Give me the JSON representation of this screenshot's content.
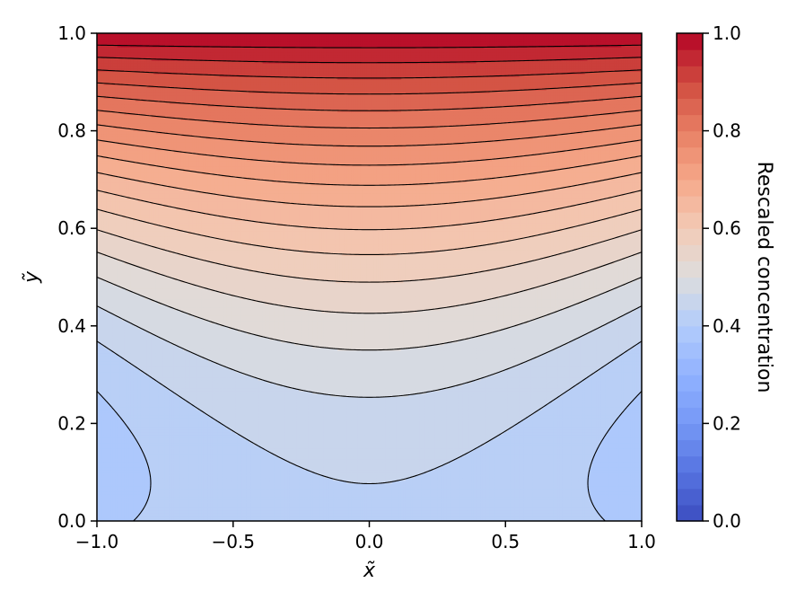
{
  "chart_data": {
    "type": "contour",
    "xlabel": "x̃",
    "ylabel": "ỹ",
    "xlim": [
      -1.0,
      1.0
    ],
    "ylim": [
      0.0,
      1.0
    ],
    "x_ticks": [
      "−1.0",
      "−0.5",
      "0.0",
      "0.5",
      "1.0"
    ],
    "x_tick_values": [
      -1.0,
      -0.5,
      0.0,
      0.5,
      1.0
    ],
    "y_ticks": [
      "0.0",
      "0.2",
      "0.4",
      "0.6",
      "0.8",
      "1.0"
    ],
    "y_tick_values": [
      0.0,
      0.2,
      0.4,
      0.6,
      0.8,
      1.0
    ],
    "colormap": "coolwarm",
    "color_low": "#3b4cc0",
    "color_mid": "#dddddd",
    "color_high": "#b40426",
    "colorbar": {
      "label": "Rescaled concentration",
      "range": [
        0.0,
        1.0
      ],
      "ticks": [
        "0.0",
        "0.2",
        "0.4",
        "0.6",
        "0.8",
        "1.0"
      ],
      "tick_values": [
        0.0,
        0.2,
        0.4,
        0.6,
        0.8,
        1.0
      ],
      "n_levels": 30
    },
    "contour_line_color": "#000000",
    "field": {
      "value_at_top": 1.0,
      "min_value_at_center_bottom": 0.43,
      "value_at_bottom_corners": 0.39,
      "value_at_side_edges_mid_height": 0.5
    },
    "contour_levels_visible_count": 29,
    "grid": false,
    "legend": "none"
  }
}
